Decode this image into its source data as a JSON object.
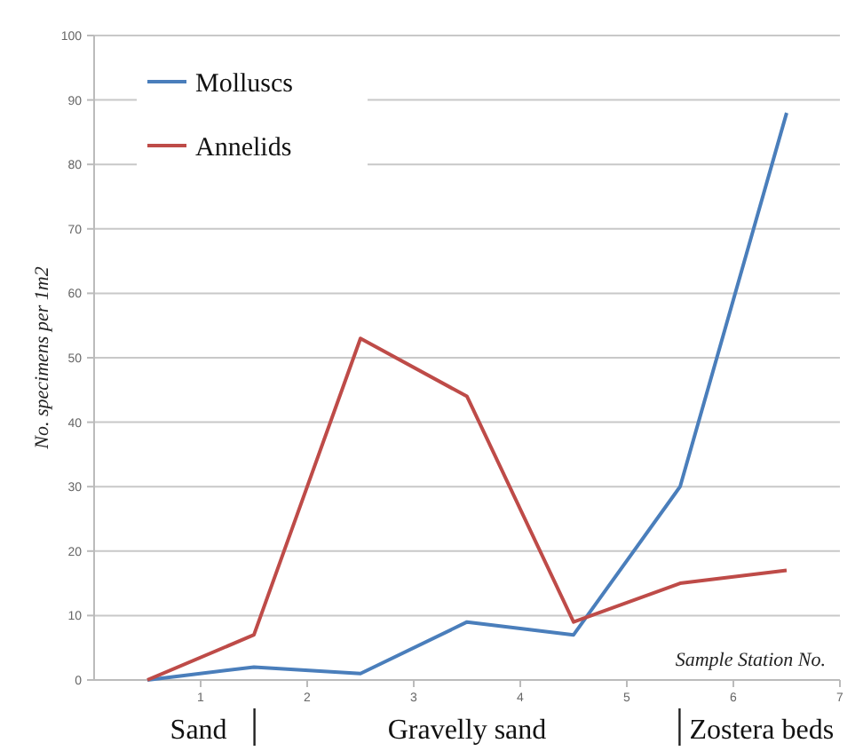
{
  "chart_data": {
    "type": "line",
    "ylabel": "No. specimens per 1m2",
    "xlabel": "Sample Station No.",
    "x": [
      0.5,
      1.5,
      2.5,
      3.5,
      4.5,
      5.5,
      6.5
    ],
    "series": [
      {
        "name": "Molluscs",
        "color": "#4a7ebb",
        "values": [
          0,
          2,
          1,
          9,
          7,
          30,
          88
        ]
      },
      {
        "name": "Annelids",
        "color": "#be4b48",
        "values": [
          0,
          7,
          53,
          44,
          9,
          15,
          17
        ]
      }
    ],
    "xlim": [
      0,
      7
    ],
    "xticks": [
      1,
      2,
      3,
      4,
      5,
      6,
      7
    ],
    "ylim": [
      0,
      100
    ],
    "yticks": [
      0,
      10,
      20,
      30,
      40,
      50,
      60,
      70,
      80,
      90,
      100
    ],
    "grid": "y",
    "legend": "top left",
    "marker": "none",
    "line_style": "solid",
    "annotations": [
      "Sand",
      "Gravelly sand",
      "Zostera beds"
    ]
  }
}
